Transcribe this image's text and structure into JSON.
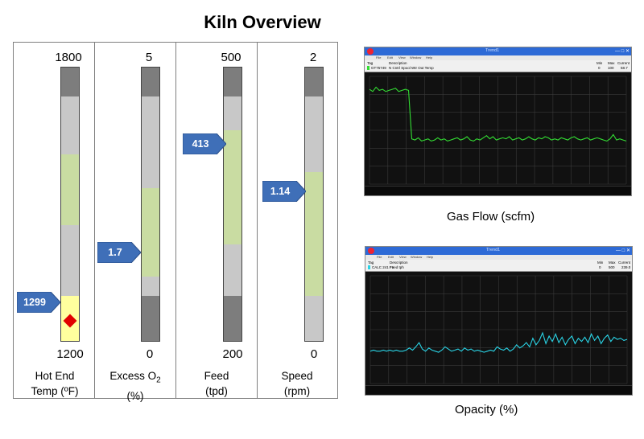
{
  "title": "Kiln Overview",
  "gauges": [
    {
      "max_label": "1800",
      "min_label": "1200",
      "label_line1": "Hot End",
      "label_line2": "Temp (ºF)",
      "value_label": "1299",
      "pointer_color": "#3f6fb8",
      "marker": "red-diamond"
    },
    {
      "max_label": "5",
      "min_label": "0",
      "label_line1": "Excess O",
      "label_line1_sub": "2",
      "label_line2": "(%)",
      "value_label": "1.7",
      "pointer_color": "#3f6fb8"
    },
    {
      "max_label": "500",
      "min_label": "200",
      "label_line1": "Feed",
      "label_line2": "(tpd)",
      "value_label": "413",
      "pointer_color": "#3f6fb8"
    },
    {
      "max_label": "2",
      "min_label": "0",
      "label_line1": "Speed",
      "label_line2": "(rpm)",
      "value_label": "1.14",
      "pointer_color": "#3f6fb8"
    }
  ],
  "trends": [
    {
      "caption": "Gas Flow   (scfm)",
      "window_title": "Trend1",
      "line_color": "#33dd33",
      "menu": [
        "File",
        "Edit",
        "View",
        "Window",
        "Help"
      ],
      "header": {
        "tag": "Tag",
        "description": "Description",
        "min": "Min",
        "max": "Max",
        "current": "Current"
      },
      "row": {
        "tag": "GT75749",
        "description": "N Cntrl Spool Wtr Out Temp",
        "min": "0",
        "max": "100",
        "current": "58.7"
      },
      "series": [
        0.88,
        0.86,
        0.9,
        0.87,
        0.88,
        0.86,
        0.87,
        0.88,
        0.89,
        0.86,
        0.87,
        0.88,
        0.87,
        0.42,
        0.41,
        0.43,
        0.4,
        0.41,
        0.42,
        0.4,
        0.41,
        0.43,
        0.41,
        0.42,
        0.4,
        0.41,
        0.42,
        0.43,
        0.41,
        0.42,
        0.44,
        0.41,
        0.4,
        0.42,
        0.41,
        0.43,
        0.45,
        0.42,
        0.44,
        0.41,
        0.42,
        0.43,
        0.42,
        0.44,
        0.41,
        0.42,
        0.43,
        0.41,
        0.42,
        0.44,
        0.42,
        0.41,
        0.43,
        0.42,
        0.44,
        0.43,
        0.41,
        0.42,
        0.41,
        0.43,
        0.42,
        0.41,
        0.43,
        0.44,
        0.42,
        0.41,
        0.42,
        0.43,
        0.41,
        0.42,
        0.43,
        0.42,
        0.41,
        0.4,
        0.42,
        0.46,
        0.41,
        0.42,
        0.41,
        0.4
      ]
    },
    {
      "caption": "Opacity (%)",
      "window_title": "Trend1",
      "line_color": "#2ad4e6",
      "menu": [
        "File",
        "Edit",
        "View",
        "Window",
        "Help"
      ],
      "header": {
        "tag": "Tag",
        "description": "Description",
        "min": "Min",
        "max": "Max",
        "current": "Current"
      },
      "row": {
        "tag": "CALC 241 F1",
        "description": "Feed tph",
        "min": "0",
        "max": "500",
        "current": "239.0"
      },
      "series": [
        0.3,
        0.31,
        0.3,
        0.3,
        0.31,
        0.3,
        0.31,
        0.3,
        0.31,
        0.3,
        0.3,
        0.31,
        0.33,
        0.31,
        0.34,
        0.38,
        0.32,
        0.3,
        0.33,
        0.31,
        0.3,
        0.29,
        0.31,
        0.34,
        0.32,
        0.3,
        0.31,
        0.32,
        0.3,
        0.33,
        0.31,
        0.32,
        0.3,
        0.31,
        0.3,
        0.29,
        0.3,
        0.31,
        0.3,
        0.34,
        0.32,
        0.31,
        0.33,
        0.3,
        0.32,
        0.36,
        0.33,
        0.35,
        0.38,
        0.34,
        0.42,
        0.36,
        0.4,
        0.47,
        0.37,
        0.44,
        0.39,
        0.46,
        0.38,
        0.43,
        0.36,
        0.41,
        0.44,
        0.37,
        0.42,
        0.39,
        0.43,
        0.38,
        0.46,
        0.4,
        0.44,
        0.37,
        0.42,
        0.45,
        0.39,
        0.43,
        0.41,
        0.42,
        0.4,
        0.41
      ]
    }
  ]
}
